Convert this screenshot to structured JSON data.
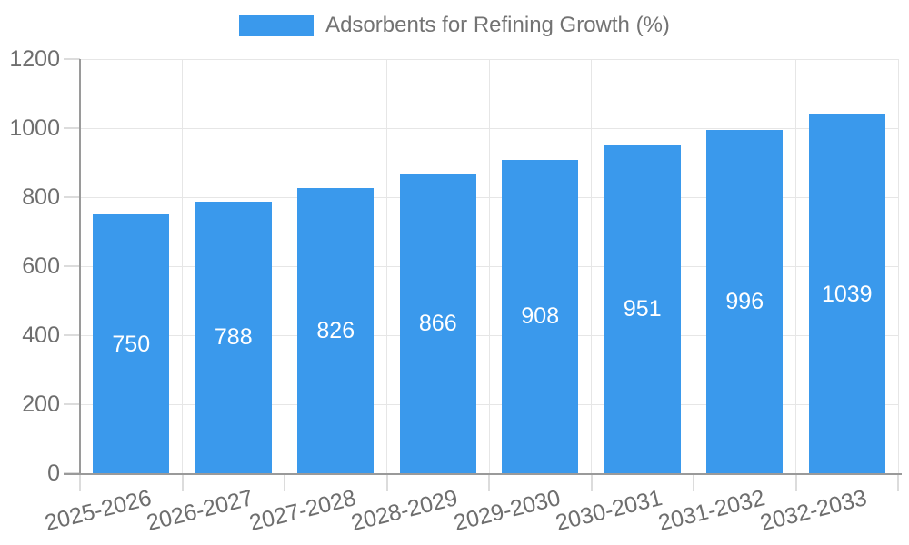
{
  "legend": {
    "label": "Adsorbents for Refining Growth (%)"
  },
  "chart_data": {
    "type": "bar",
    "title": "",
    "legend_entries": [
      "Adsorbents for Refining Growth (%)"
    ],
    "legend_position": "top-center",
    "categories": [
      "2025-2026",
      "2026-2027",
      "2027-2028",
      "2028-2029",
      "2029-2030",
      "2030-2031",
      "2031-2032",
      "2032-2033"
    ],
    "series": [
      {
        "name": "Adsorbents for Refining Growth (%)",
        "values": [
          750,
          788,
          826,
          866,
          908,
          951,
          996,
          1039
        ]
      }
    ],
    "bar_value_labels": [
      "750",
      "788",
      "826",
      "866",
      "908",
      "951",
      "996",
      "1039"
    ],
    "xlabel": "",
    "ylabel": "",
    "ylim": [
      0,
      1200
    ],
    "yticks": [
      0,
      200,
      400,
      600,
      800,
      1000,
      1200
    ],
    "grid": "horizontal and vertical light gridlines",
    "x_label_rotation_deg": -14,
    "colors": {
      "bar_fill": "#3A99EC",
      "bar_label_text": "#FFFFFF",
      "axis_line": "#9A9A9A",
      "gridline": "#E6E6E6",
      "tick_mark": "#DCDCDC",
      "tick_label_text": "#6E6E6E",
      "legend_text": "#737373",
      "background": "#FFFFFF"
    }
  }
}
